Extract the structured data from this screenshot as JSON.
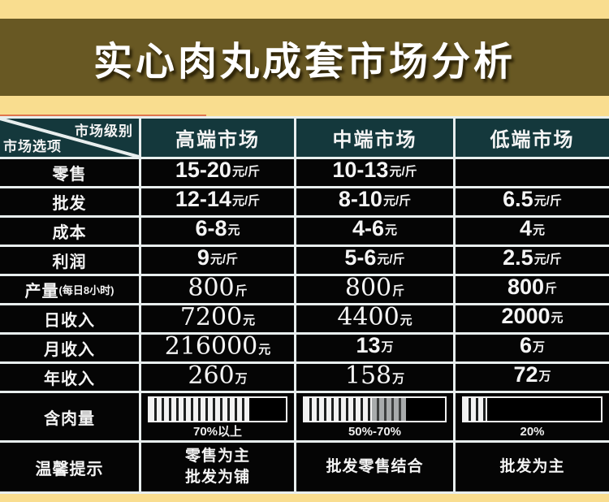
{
  "page": {
    "title": "实心肉丸成套市场分析"
  },
  "colors": {
    "page_beige": "#f9dd8f",
    "band_olive": "#685823",
    "header_teal": "#14383c",
    "cell_black": "#050505",
    "grid_line": "#e8eeee",
    "accent_orange": "#e0754d"
  },
  "table": {
    "corner": {
      "top_right": "市场级别",
      "bottom_left": "市场选项"
    },
    "columns": [
      "高端市场",
      "中端市场",
      "低端市场"
    ],
    "rows": [
      {
        "label": "零售",
        "cells": [
          {
            "value": "15-20",
            "unit": "元/斤"
          },
          {
            "value": "10-13",
            "unit": "元/斤"
          },
          {
            "value": "",
            "unit": ""
          }
        ]
      },
      {
        "label": "批发",
        "cells": [
          {
            "value": "12-14",
            "unit": "元/斤"
          },
          {
            "value": "8-10",
            "unit": "元/斤"
          },
          {
            "value": "6.5",
            "unit": "元/斤"
          }
        ]
      },
      {
        "label": "成本",
        "cells": [
          {
            "value": "6-8",
            "unit": "元"
          },
          {
            "value": "4-6",
            "unit": "元"
          },
          {
            "value": "4",
            "unit": "元"
          }
        ]
      },
      {
        "label": "利润",
        "cells": [
          {
            "value": "9",
            "unit": "元/斤"
          },
          {
            "value": "5-6",
            "unit": "元/斤"
          },
          {
            "value": "2.5",
            "unit": "元/斤"
          }
        ]
      },
      {
        "label": "产量",
        "label_note": "(每日8小时)",
        "cells": [
          {
            "value": "800",
            "unit": "斤"
          },
          {
            "value": "800",
            "unit": "斤"
          },
          {
            "value": "800",
            "unit": "斤"
          }
        ]
      },
      {
        "label": "日收入",
        "cells": [
          {
            "value": "7200",
            "unit": "元"
          },
          {
            "value": "4400",
            "unit": "元"
          },
          {
            "value": "2000",
            "unit": "元"
          }
        ]
      },
      {
        "label": "月收入",
        "cells": [
          {
            "value": "216000",
            "unit": "元"
          },
          {
            "value": "13",
            "unit": "万"
          },
          {
            "value": "6",
            "unit": "万"
          }
        ]
      },
      {
        "label": "年收入",
        "cells": [
          {
            "value": "260",
            "unit": "万"
          },
          {
            "value": "158",
            "unit": "万"
          },
          {
            "value": "72",
            "unit": "万"
          }
        ]
      }
    ],
    "meat_row": {
      "label": "含肉量",
      "bars": [
        {
          "label": "70%以上",
          "white_pct": 73,
          "gray_pct": 0
        },
        {
          "label": "50%-70%",
          "white_pct": 48,
          "gray_pct": 24
        },
        {
          "label": "20%",
          "white_pct": 17,
          "gray_pct": 0
        }
      ]
    },
    "tips_row": {
      "label": "温馨提示",
      "cells": [
        {
          "line1": "零售为主",
          "line2": "批发为铺"
        },
        {
          "line1": "批发零售结合",
          "line2": ""
        },
        {
          "line1": "批发为主",
          "line2": ""
        }
      ]
    }
  },
  "chart_data": {
    "type": "table",
    "title": "实心肉丸成套市场分析",
    "columns": [
      "市场选项 \\ 市场级别",
      "高端市场",
      "中端市场",
      "低端市场"
    ],
    "rows": [
      [
        "零售",
        "15-20元/斤",
        "10-13元/斤",
        ""
      ],
      [
        "批发",
        "12-14元/斤",
        "8-10元/斤",
        "6.5元/斤"
      ],
      [
        "成本",
        "6-8元",
        "4-6元",
        "4元"
      ],
      [
        "利润",
        "9元/斤",
        "5-6元/斤",
        "2.5元/斤"
      ],
      [
        "产量(每日8小时)",
        "800斤",
        "800斤",
        "800斤"
      ],
      [
        "日收入",
        "7200元",
        "4400元",
        "2000元"
      ],
      [
        "月收入",
        "216000元",
        "13万",
        "6万"
      ],
      [
        "年收入",
        "260万",
        "158万",
        "72万"
      ],
      [
        "含肉量",
        "70%以上",
        "50%-70%",
        "20%"
      ],
      [
        "温馨提示",
        "零售为主 批发为铺",
        "批发零售结合",
        "批发为主"
      ]
    ]
  }
}
